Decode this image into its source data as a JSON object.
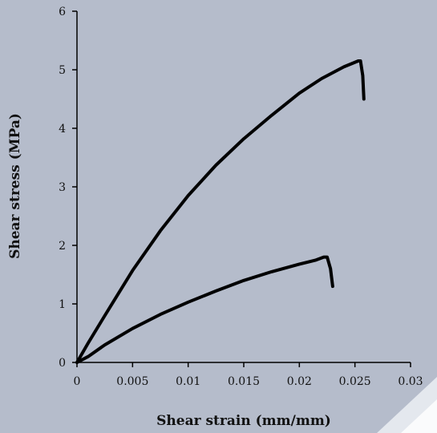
{
  "chart_data": {
    "type": "line",
    "title": "",
    "xlabel": "Shear strain (mm/mm)",
    "ylabel": "Shear stress (MPa)",
    "xlim": [
      0,
      0.03
    ],
    "ylim": [
      0,
      6
    ],
    "x_ticks": [
      0,
      0.005,
      0.01,
      0.015,
      0.02,
      0.025,
      0.03
    ],
    "x_tick_labels": [
      "0",
      "0.005",
      "0.01",
      "0.015",
      "0.02",
      "0.025",
      "0.03"
    ],
    "y_ticks": [
      0,
      1,
      2,
      3,
      4,
      5,
      6
    ],
    "y_tick_labels": [
      "0",
      "1",
      "2",
      "3",
      "4",
      "5",
      "6"
    ],
    "grid": false,
    "legend": "none",
    "series": [
      {
        "color": "#000000",
        "x": [
          0,
          0.001,
          0.0025,
          0.005,
          0.0075,
          0.01,
          0.0125,
          0.015,
          0.0175,
          0.02,
          0.022,
          0.024,
          0.0253,
          0.0255,
          0.0257,
          0.0258
        ],
        "y": [
          0,
          0.33,
          0.8,
          1.57,
          2.25,
          2.85,
          3.37,
          3.82,
          4.22,
          4.6,
          4.85,
          5.05,
          5.15,
          5.15,
          4.9,
          4.5
        ]
      },
      {
        "color": "#000000",
        "x": [
          0,
          0.001,
          0.0025,
          0.005,
          0.0075,
          0.01,
          0.0125,
          0.015,
          0.0175,
          0.02,
          0.0215,
          0.0222,
          0.0225,
          0.0228,
          0.023
        ],
        "y": [
          0,
          0.1,
          0.3,
          0.58,
          0.82,
          1.03,
          1.22,
          1.4,
          1.55,
          1.68,
          1.75,
          1.8,
          1.8,
          1.6,
          1.3
        ]
      }
    ]
  },
  "colors": {
    "background": "#b5bccb",
    "ink": "#000000"
  }
}
